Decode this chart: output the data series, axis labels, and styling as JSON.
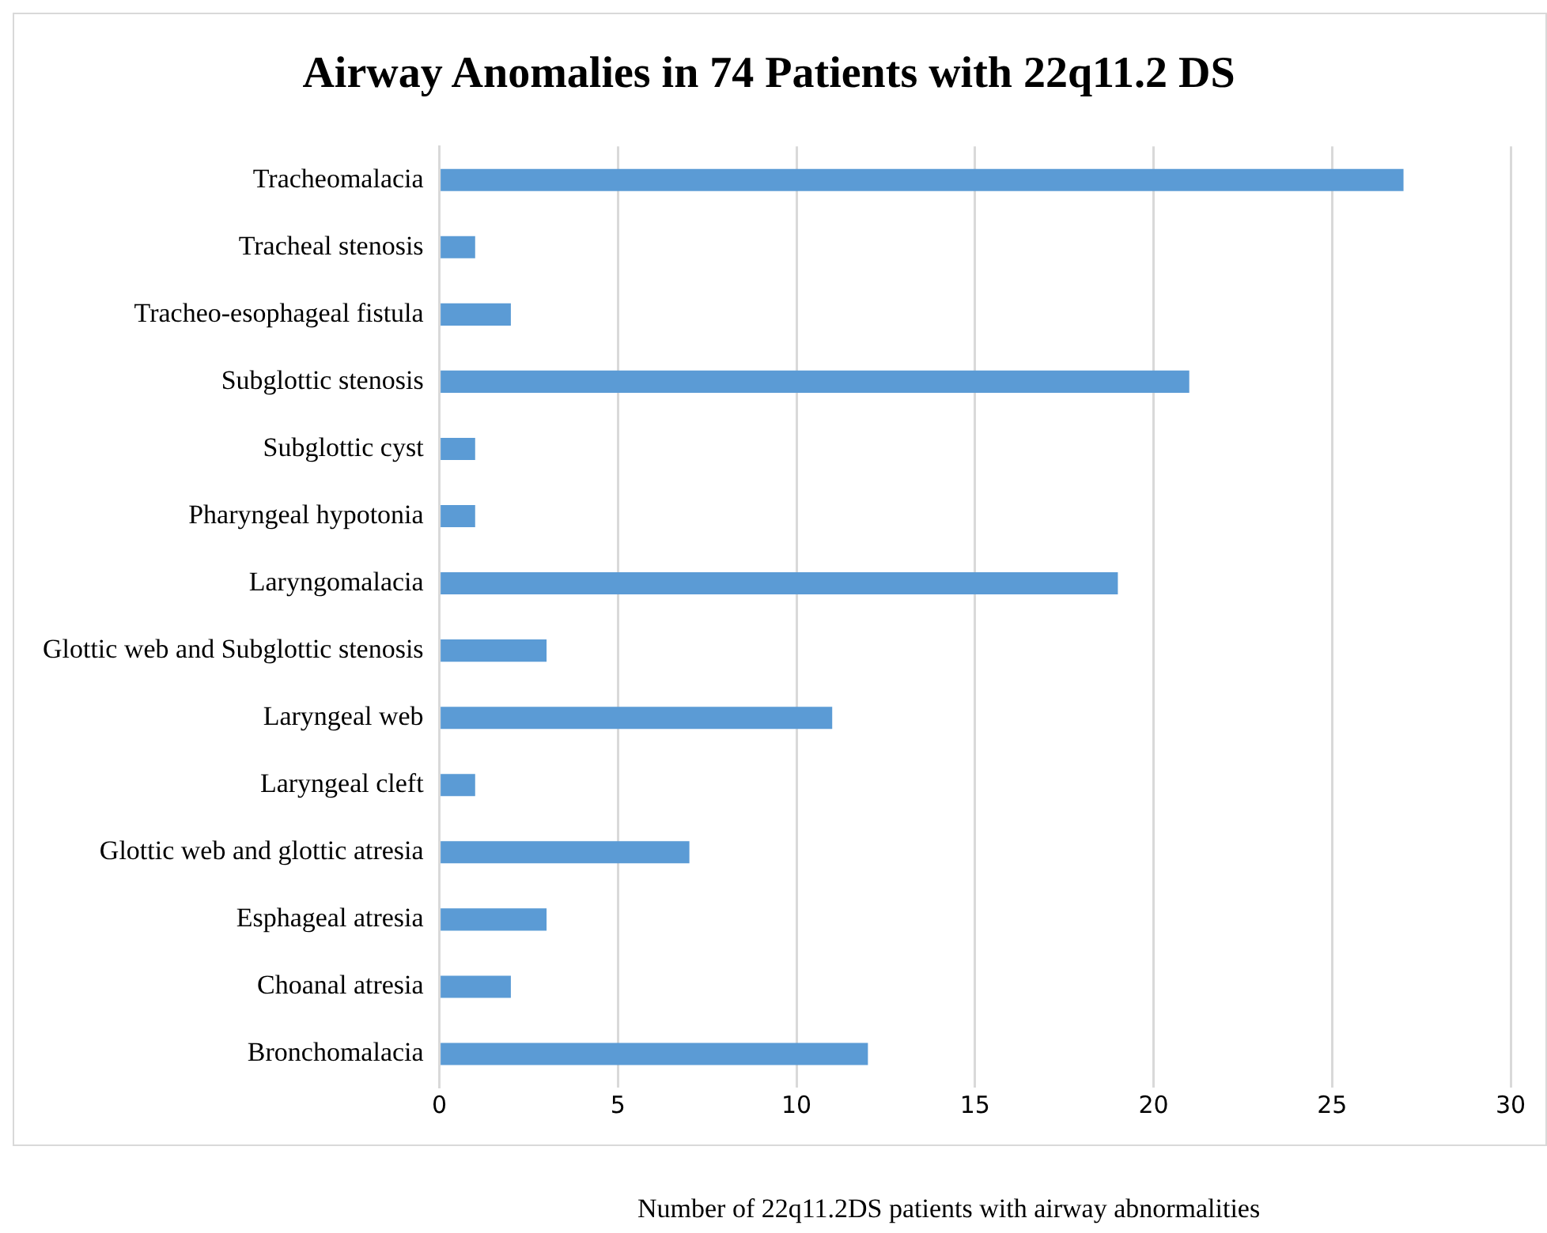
{
  "chart_data": {
    "type": "bar",
    "orientation": "horizontal",
    "title": "Airway Anomalies in 74 Patients with 22q11.2 DS",
    "xlabel": "Number of 22q11.2DS patients with airway abnormalities",
    "categories": [
      "Tracheomalacia",
      "Tracheal stenosis",
      "Tracheo-esophageal fistula",
      "Subglottic stenosis",
      "Subglottic cyst",
      "Pharyngeal hypotonia",
      "Laryngomalacia",
      "Glottic web and Subglottic stenosis",
      "Laryngeal web",
      "Laryngeal cleft",
      "Glottic web and glottic atresia",
      "Esphageal atresia",
      "Choanal atresia",
      "Bronchomalacia"
    ],
    "values": [
      27,
      1,
      2,
      21,
      1,
      1,
      19,
      3,
      11,
      1,
      7,
      3,
      2,
      12
    ],
    "color": "#5b9bd5",
    "xlim": [
      0,
      30
    ],
    "xticks": [
      0,
      5,
      10,
      15,
      20,
      25,
      30
    ],
    "grid": "x",
    "legend": false
  }
}
